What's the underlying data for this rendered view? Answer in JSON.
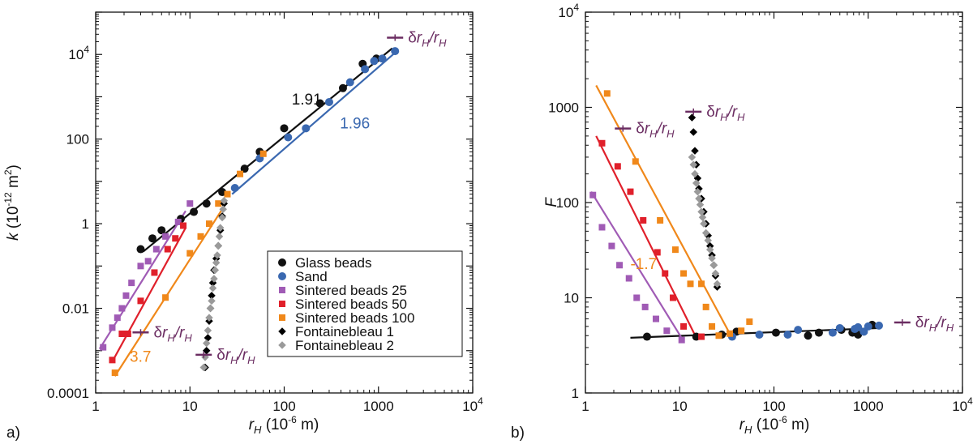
{
  "chart_data": [
    {
      "type": "scatter",
      "panel_label": "a)",
      "xscale": "log",
      "yscale": "log",
      "xlim": [
        1,
        10000
      ],
      "ylim": [
        0.0001,
        100000
      ],
      "xlabel_sym": "r",
      "xlabel_sub": "H",
      "xlabel_unit": "(10",
      "xlabel_exp": "-6",
      "xlabel_tail": " m)",
      "ylabel_sym": "k",
      "ylabel_unit": "(10",
      "ylabel_exp": "-12",
      "ylabel_mid": " m",
      "ylabel_exp2": "2",
      "ylabel_tail": ")",
      "x_ticks": [
        {
          "v": 1,
          "label": "1"
        },
        {
          "v": 10,
          "label": "10"
        },
        {
          "v": 100,
          "label": "100"
        },
        {
          "v": 1000,
          "label": "1000"
        },
        {
          "v": 10000,
          "label": "10",
          "sup": "4"
        }
      ],
      "y_ticks": [
        {
          "v": 0.0001,
          "label": "0.0001"
        },
        {
          "v": 0.01,
          "label": "0.01"
        },
        {
          "v": 1,
          "label": "1"
        },
        {
          "v": 100,
          "label": "100"
        },
        {
          "v": 10000,
          "label": "10",
          "sup": "4"
        }
      ],
      "legend": [
        {
          "label": "Glass beads",
          "color": "#111111",
          "marker": "circle"
        },
        {
          "label": "Sand",
          "color": "#3a68b0",
          "marker": "circle"
        },
        {
          "label": "Sintered beads 25",
          "color": "#a05bb5",
          "marker": "square"
        },
        {
          "label": "Sintered beads 50",
          "color": "#e0202b",
          "marker": "square"
        },
        {
          "label": "Sintered beads 100",
          "color": "#f0881a",
          "marker": "square"
        },
        {
          "label": "Fontainebleau 1",
          "color": "#000000",
          "marker": "diamond"
        },
        {
          "label": "Fontainebleau 2",
          "color": "#9a9a9a",
          "marker": "diamond"
        }
      ],
      "series": [
        {
          "name": "Glass beads",
          "color": "#111111",
          "marker": "circle",
          "x": [
            3,
            4,
            5,
            8,
            11,
            15,
            22,
            38,
            55,
            100,
            240,
            420,
            680,
            950
          ],
          "y": [
            0.25,
            0.45,
            0.7,
            1.3,
            1.9,
            3.0,
            5.6,
            20,
            50,
            180,
            700,
            1600,
            6000,
            8000
          ]
        },
        {
          "name": "Sand",
          "color": "#3a68b0",
          "marker": "circle",
          "x": [
            30,
            55,
            110,
            170,
            300,
            500,
            720,
            900,
            1100,
            1500
          ],
          "y": [
            7,
            35,
            110,
            180,
            750,
            2200,
            4500,
            7000,
            8000,
            12000
          ]
        },
        {
          "name": "Sintered beads 25",
          "color": "#a05bb5",
          "marker": "square",
          "x": [
            1.2,
            1.5,
            1.7,
            1.9,
            2.1,
            2.4,
            3.0,
            3.6,
            4.4,
            5.5,
            7.5,
            10
          ],
          "y": [
            0.0012,
            0.0035,
            0.006,
            0.01,
            0.02,
            0.04,
            0.1,
            0.13,
            0.25,
            0.5,
            1.1,
            3.0
          ]
        },
        {
          "name": "Sintered beads 50",
          "color": "#e0202b",
          "marker": "square",
          "x": [
            1.5,
            1.9,
            2.2,
            3.0,
            4.2,
            5.8,
            7.0,
            8.5
          ],
          "y": [
            0.0006,
            0.0025,
            0.0025,
            0.015,
            0.07,
            0.25,
            0.45,
            0.9
          ]
        },
        {
          "name": "Sintered beads 100",
          "color": "#f0881a",
          "marker": "square",
          "x": [
            1.6,
            5.5,
            10,
            13,
            16,
            20,
            25,
            34,
            60
          ],
          "y": [
            0.0003,
            0.018,
            0.2,
            0.5,
            1.0,
            3.0,
            5.0,
            15,
            45
          ]
        },
        {
          "name": "Fontainebleau 1",
          "color": "#000000",
          "marker": "diamond",
          "x": [
            14.5,
            15,
            15.5,
            16,
            16.5,
            17,
            17.5,
            18,
            19,
            20,
            21,
            22,
            23
          ],
          "y": [
            0.0004,
            0.001,
            0.002,
            0.005,
            0.01,
            0.02,
            0.04,
            0.08,
            0.15,
            0.3,
            0.7,
            1.5,
            3.0
          ]
        },
        {
          "name": "Fontainebleau 2",
          "color": "#9a9a9a",
          "marker": "diamond",
          "x": [
            14,
            14.5,
            15,
            15.5,
            16,
            16.5,
            17,
            17.5,
            18,
            18.5,
            19,
            19.5,
            20,
            20.5,
            21,
            22,
            22.5,
            23
          ],
          "y": [
            0.0004,
            0.0007,
            0.0015,
            0.003,
            0.006,
            0.01,
            0.015,
            0.03,
            0.05,
            0.08,
            0.12,
            0.18,
            0.3,
            0.5,
            0.8,
            1.4,
            2.2,
            3.5
          ]
        }
      ],
      "fits": [
        {
          "color": "#111111",
          "x": [
            3.2,
            1400
          ],
          "y": [
            0.22,
            14000
          ],
          "slope_label": "1.91",
          "label_x": 120,
          "label_y": 650
        },
        {
          "color": "#3a68b0",
          "x": [
            28,
            1500
          ],
          "y": [
            5.0,
            11000
          ],
          "slope_label": "1.96",
          "label_x": 390,
          "label_y": 180
        },
        {
          "color": "#a05bb5",
          "x": [
            1.1,
            9
          ],
          "y": [
            0.0011,
            2.0
          ]
        },
        {
          "color": "#e0202b",
          "x": [
            1.5,
            9
          ],
          "y": [
            0.00055,
            0.8
          ]
        },
        {
          "color": "#f0881a",
          "x": [
            1.6,
            22
          ],
          "y": [
            0.00025,
            2.2
          ],
          "slope_label": "3.7",
          "label_x": 2.3,
          "label_y": 0.00055
        }
      ],
      "error_labels": [
        {
          "text_sym": "δr",
          "sub": "H",
          "slash": "/r",
          "sub2": "H",
          "bar_x": 1500,
          "bar_y": 25000,
          "color": "#6b2d62"
        },
        {
          "text_sym": "δr",
          "sub": "H",
          "slash": "/r",
          "sub2": "H",
          "bar_x": 3.0,
          "bar_y": 0.0027,
          "color": "#6b2d62"
        },
        {
          "text_sym": "δr",
          "sub": "H",
          "slash": "/r",
          "sub2": "H",
          "bar_x": 14,
          "bar_y": 0.0008,
          "color": "#6b2d62"
        }
      ]
    },
    {
      "type": "scatter",
      "panel_label": "b)",
      "xscale": "log",
      "yscale": "log",
      "xlim": [
        1,
        10000
      ],
      "ylim": [
        1,
        10000
      ],
      "xlabel_sym": "r",
      "xlabel_sub": "H",
      "xlabel_unit": "(10",
      "xlabel_exp": "-6",
      "xlabel_tail": " m)",
      "ylabel_sym": "F",
      "x_ticks": [
        {
          "v": 1,
          "label": "1"
        },
        {
          "v": 10,
          "label": "10"
        },
        {
          "v": 100,
          "label": "100"
        },
        {
          "v": 1000,
          "label": "1000"
        },
        {
          "v": 10000,
          "label": "10",
          "sup": "4"
        }
      ],
      "y_ticks": [
        {
          "v": 1,
          "label": "1"
        },
        {
          "v": 10,
          "label": "10"
        },
        {
          "v": 100,
          "label": "100"
        },
        {
          "v": 1000,
          "label": "1000"
        },
        {
          "v": 10000,
          "label": "10",
          "sup": "4"
        }
      ],
      "series": [
        {
          "name": "Glass beads",
          "color": "#111111",
          "marker": "circle",
          "x": [
            4.5,
            15,
            28,
            40,
            105,
            230,
            300,
            520,
            680,
            780,
            1100
          ],
          "y": [
            3.9,
            3.9,
            4.1,
            4.4,
            4.3,
            4.0,
            4.3,
            4.6,
            4.3,
            4.1,
            5.2
          ]
        },
        {
          "name": "Sand",
          "color": "#3a68b0",
          "marker": "circle",
          "x": [
            36,
            70,
            140,
            180,
            420,
            500,
            720,
            780,
            900,
            1000,
            1300
          ],
          "y": [
            3.9,
            4.1,
            4.1,
            4.6,
            4.3,
            4.8,
            4.7,
            4.9,
            4.4,
            5.0,
            5.1
          ]
        },
        {
          "name": "Sintered beads 25",
          "color": "#a05bb5",
          "marker": "square",
          "x": [
            1.2,
            1.5,
            1.9,
            2.3,
            2.9,
            3.5,
            4.3,
            5.6,
            7.3,
            10.5
          ],
          "y": [
            120,
            55,
            35,
            22,
            16,
            10,
            8,
            6,
            4.5,
            3.6
          ]
        },
        {
          "name": "Sintered beads 50",
          "color": "#e0202b",
          "marker": "square",
          "x": [
            1.5,
            2.2,
            3.0,
            4.1,
            5.8,
            7.0,
            8.5,
            11,
            17
          ],
          "y": [
            420,
            240,
            130,
            65,
            30,
            18,
            10,
            5.0,
            3.9
          ]
        },
        {
          "name": "Sintered beads 100",
          "color": "#f0881a",
          "marker": "square",
          "x": [
            1.7,
            3.4,
            6.2,
            9,
            11,
            13,
            17,
            19,
            22,
            26,
            34,
            45,
            55
          ],
          "y": [
            1400,
            270,
            65,
            32,
            18,
            14,
            14,
            8,
            5,
            4.0,
            4.2,
            4.5,
            5.6
          ]
        },
        {
          "name": "Fontainebleau 1",
          "color": "#000000",
          "marker": "diamond",
          "x": [
            13.5,
            14,
            14.5,
            15,
            15.5,
            16,
            17,
            18,
            19,
            20,
            21,
            22,
            23,
            24,
            25
          ],
          "y": [
            780,
            550,
            350,
            250,
            180,
            140,
            110,
            80,
            60,
            45,
            35,
            28,
            22,
            17,
            13
          ]
        },
        {
          "name": "Fontainebleau 2",
          "color": "#9a9a9a",
          "marker": "diamond",
          "x": [
            13.5,
            14,
            14.5,
            15,
            15.5,
            16,
            16.5,
            17,
            17.5,
            18,
            19,
            20,
            21,
            22,
            23,
            24,
            25
          ],
          "y": [
            300,
            250,
            200,
            160,
            130,
            110,
            95,
            80,
            70,
            60,
            48,
            40,
            32,
            26,
            22,
            18,
            14
          ]
        }
      ],
      "fits": [
        {
          "color": "#111111",
          "x": [
            3,
            1300
          ],
          "y": [
            3.8,
            4.8
          ]
        },
        {
          "color": "#a05bb5",
          "x": [
            1.15,
            11
          ],
          "y": [
            130,
            3.5
          ]
        },
        {
          "color": "#e0202b",
          "x": [
            1.3,
            15
          ],
          "y": [
            500,
            3.8
          ]
        },
        {
          "color": "#f0881a",
          "x": [
            1.3,
            34
          ],
          "y": [
            1700,
            4.2
          ],
          "slope_label": "-1.7",
          "label_x": 3.0,
          "label_y": 20
        }
      ],
      "error_labels": [
        {
          "text_sym": "δr",
          "sub": "H",
          "slash": "/r",
          "sub2": "H",
          "bar_x": 2.5,
          "bar_y": 600,
          "color": "#6b2d62"
        },
        {
          "text_sym": "δr",
          "sub": "H",
          "slash": "/r",
          "sub2": "H",
          "bar_x": 14,
          "bar_y": 900,
          "color": "#6b2d62"
        },
        {
          "text_sym": "δr",
          "sub": "H",
          "slash": "/r",
          "sub2": "H",
          "bar_x": 2300,
          "bar_y": 5.5,
          "color": "#6b2d62"
        }
      ]
    }
  ]
}
